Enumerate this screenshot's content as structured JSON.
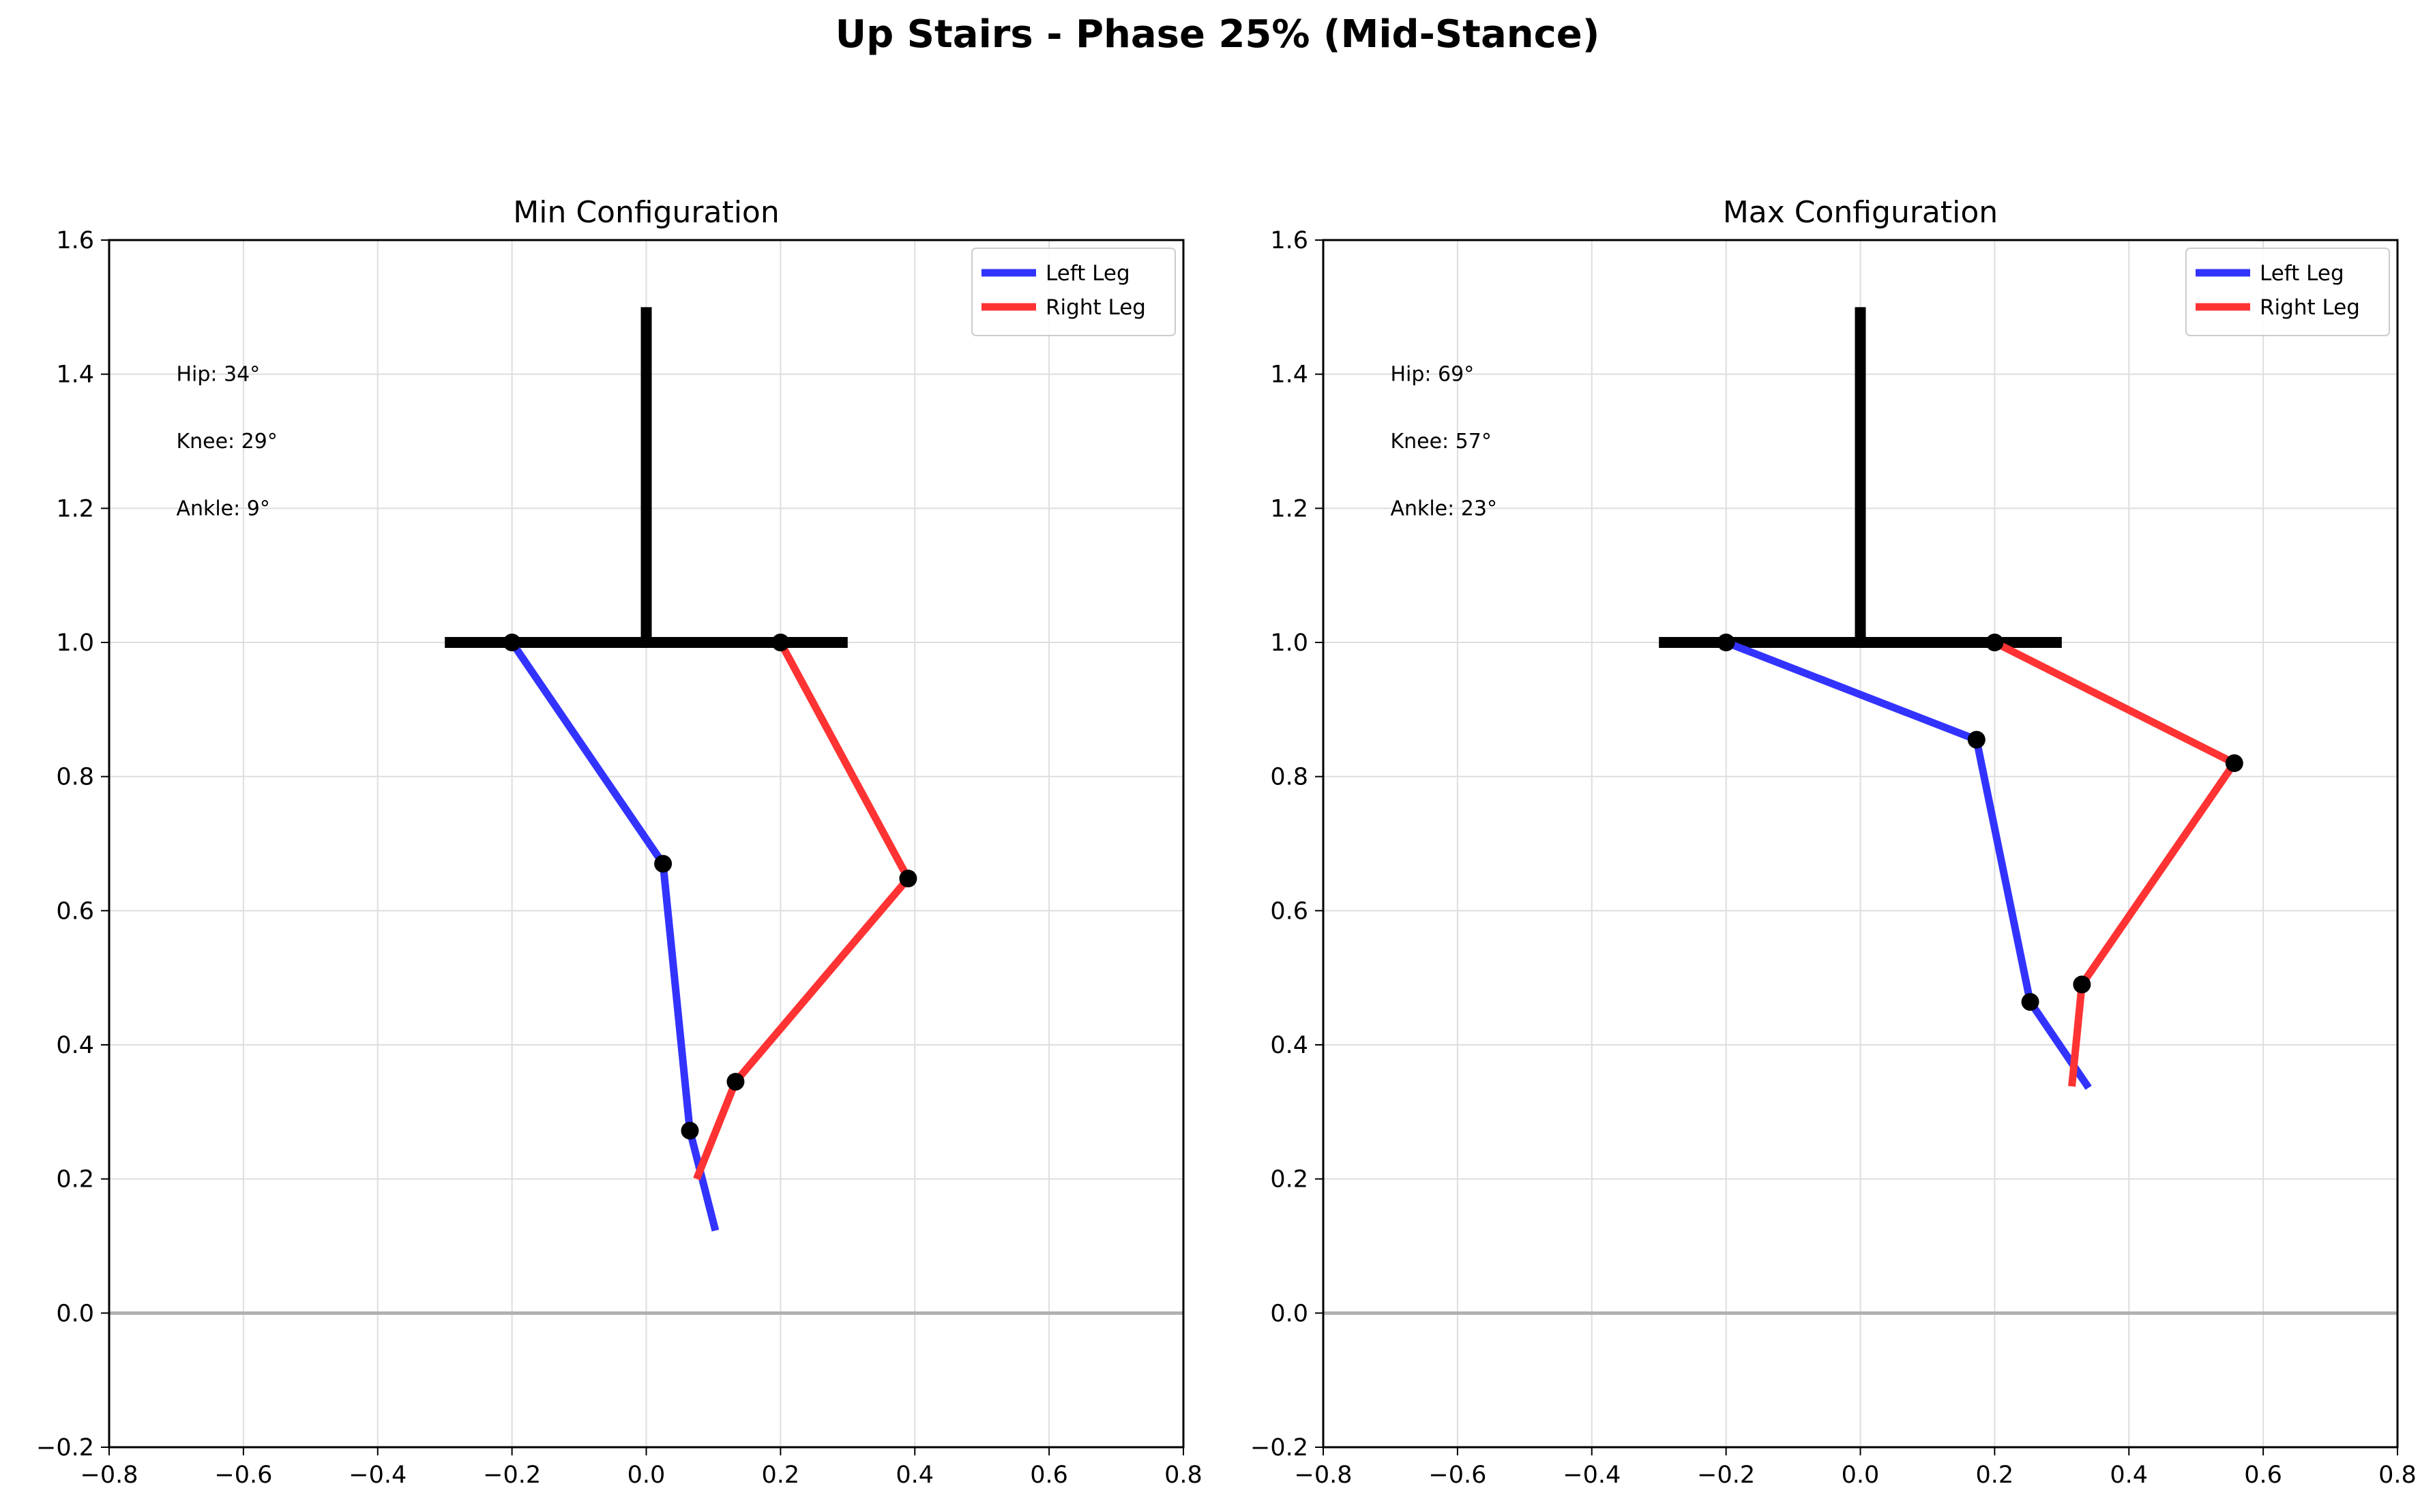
{
  "suptitle": "Up Stairs - Phase 25% (Mid-Stance)",
  "chart_data": [
    {
      "type": "line",
      "title": "Min Configuration",
      "xlim": [
        -0.8,
        0.8
      ],
      "ylim": [
        -0.2,
        1.6
      ],
      "xticks": [
        -0.8,
        -0.6,
        -0.4,
        -0.2,
        0.0,
        0.2,
        0.4,
        0.6,
        0.8
      ],
      "xtick_labels": [
        "−0.8",
        "−0.6",
        "−0.4",
        "−0.2",
        "0.0",
        "0.2",
        "0.4",
        "0.6",
        "0.8"
      ],
      "yticks": [
        -0.2,
        0.0,
        0.2,
        0.4,
        0.6,
        0.8,
        1.0,
        1.2,
        1.4,
        1.6
      ],
      "ytick_labels": [
        "−0.2",
        "0.0",
        "0.2",
        "0.4",
        "0.6",
        "0.8",
        "1.0",
        "1.2",
        "1.4",
        "1.6"
      ],
      "grid": true,
      "legend_position": "top-right",
      "annotations": [
        "Hip: 34°",
        "Knee: 29°",
        "Ankle: 9°"
      ],
      "body": {
        "trunk": [
          [
            0.0,
            1.0
          ],
          [
            0.0,
            1.5
          ]
        ],
        "pelvis": [
          [
            -0.3,
            1.0
          ],
          [
            0.3,
            1.0
          ]
        ],
        "ground_y": 0.0
      },
      "series": [
        {
          "name": "Left Leg",
          "color": "#3333ff",
          "points": [
            [
              -0.2,
              1.0
            ],
            [
              0.025,
              0.67
            ],
            [
              0.065,
              0.272
            ],
            [
              0.103,
              0.123
            ]
          ],
          "joints": 3
        },
        {
          "name": "Right Leg",
          "color": "#ff3333",
          "points": [
            [
              0.2,
              1.0
            ],
            [
              0.39,
              0.648
            ],
            [
              0.133,
              0.345
            ],
            [
              0.075,
              0.2
            ]
          ],
          "joints": 3
        }
      ]
    },
    {
      "type": "line",
      "title": "Max Configuration",
      "xlim": [
        -0.8,
        0.8
      ],
      "ylim": [
        -0.2,
        1.6
      ],
      "xticks": [
        -0.8,
        -0.6,
        -0.4,
        -0.2,
        0.0,
        0.2,
        0.4,
        0.6,
        0.8
      ],
      "xtick_labels": [
        "−0.8",
        "−0.6",
        "−0.4",
        "−0.2",
        "0.0",
        "0.2",
        "0.4",
        "0.6",
        "0.8"
      ],
      "yticks": [
        -0.2,
        0.0,
        0.2,
        0.4,
        0.6,
        0.8,
        1.0,
        1.2,
        1.4,
        1.6
      ],
      "ytick_labels": [
        "−0.2",
        "0.0",
        "0.2",
        "0.4",
        "0.6",
        "0.8",
        "1.0",
        "1.2",
        "1.4",
        "1.6"
      ],
      "grid": true,
      "legend_position": "top-right",
      "annotations": [
        "Hip: 69°",
        "Knee: 57°",
        "Ankle: 23°"
      ],
      "body": {
        "trunk": [
          [
            0.0,
            1.0
          ],
          [
            0.0,
            1.5
          ]
        ],
        "pelvis": [
          [
            -0.3,
            1.0
          ],
          [
            0.3,
            1.0
          ]
        ],
        "ground_y": 0.0
      },
      "series": [
        {
          "name": "Left Leg",
          "color": "#3333ff",
          "points": [
            [
              -0.2,
              1.0
            ],
            [
              0.173,
              0.855
            ],
            [
              0.253,
              0.464
            ],
            [
              0.34,
              0.336
            ]
          ],
          "joints": 3
        },
        {
          "name": "Right Leg",
          "color": "#ff3333",
          "points": [
            [
              0.2,
              1.0
            ],
            [
              0.557,
              0.82
            ],
            [
              0.33,
              0.49
            ],
            [
              0.315,
              0.338
            ]
          ],
          "joints": 3
        }
      ]
    }
  ]
}
